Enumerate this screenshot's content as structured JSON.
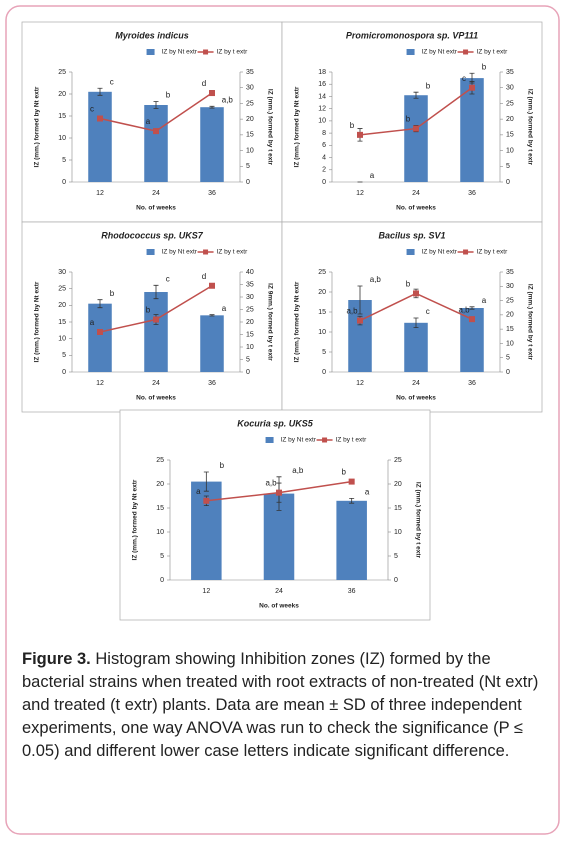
{
  "chart_data": [
    {
      "type": "bar_line",
      "title": "Myroides indicus",
      "x_label": "No. of weeks",
      "y_label": "IZ (mm.) formed by Nt extr",
      "y2_label": "IZ (mm.) formed by t extr",
      "categories": [
        "12",
        "24",
        "36"
      ],
      "ylim": [
        0,
        25
      ],
      "yticks": [
        0,
        5,
        10,
        15,
        20,
        25
      ],
      "y2lim": [
        0,
        35
      ],
      "y2ticks": [
        0,
        5,
        10,
        15,
        20,
        25,
        30,
        35
      ],
      "series": [
        {
          "name": "IZ by Nt extr",
          "color": "#4f81bd",
          "values": [
            20.5,
            17.5,
            17
          ],
          "errors": [
            0.8,
            0.8,
            0.2
          ],
          "sig_letters": [
            "c",
            "b",
            "a,b"
          ]
        },
        {
          "name": "IZ by t extr",
          "color": "#c0504d",
          "axis": "y2",
          "values": [
            20.2,
            16.2,
            28.3
          ],
          "errors": [
            0.5,
            0.5,
            0.8
          ],
          "sig_letters": [
            "c",
            "a",
            "d"
          ]
        }
      ]
    },
    {
      "type": "bar_line",
      "title": "Promicromonospora sp. VP111",
      "x_label": "No. of weeks",
      "y_label": "IZ (mm.) formed by Nt extr",
      "y2_label": "IZ (mm.) formed by t extr",
      "categories": [
        "12",
        "24",
        "36"
      ],
      "ylim": [
        0,
        18
      ],
      "yticks": [
        0,
        2,
        4,
        6,
        8,
        10,
        12,
        14,
        16,
        18
      ],
      "y2lim": [
        0,
        35
      ],
      "y2ticks": [
        0,
        5,
        10,
        15,
        20,
        25,
        30,
        35
      ],
      "series": [
        {
          "name": "IZ by Nt extr",
          "color": "#4f81bd",
          "values": [
            0,
            14.2,
            17
          ],
          "errors": [
            0,
            0.5,
            0.8
          ],
          "sig_letters": [
            "a",
            "b",
            "b"
          ]
        },
        {
          "name": "IZ by t extr",
          "color": "#c0504d",
          "axis": "y2",
          "values": [
            15,
            17,
            30
          ],
          "errors": [
            2,
            1,
            2
          ],
          "sig_letters": [
            "b",
            "b",
            "c"
          ]
        }
      ]
    },
    {
      "type": "bar_line",
      "title": "Rhodococcus sp. UKS7",
      "x_label": "No. of weeks",
      "y_label": "IZ (mm.) formed by Nt extr",
      "y2_label": "IZ 9mm.) formed by t extr",
      "categories": [
        "12",
        "24",
        "36"
      ],
      "ylim": [
        0,
        30
      ],
      "yticks": [
        0,
        5,
        10,
        15,
        20,
        25,
        30
      ],
      "y2lim": [
        0,
        40
      ],
      "y2ticks": [
        0,
        5,
        10,
        15,
        20,
        25,
        30,
        35,
        40
      ],
      "series": [
        {
          "name": "IZ by Nt extr",
          "color": "#4f81bd",
          "values": [
            20.5,
            24,
            17
          ],
          "errors": [
            1.2,
            2,
            0.2
          ],
          "sig_letters": [
            "b",
            "c",
            "a"
          ]
        },
        {
          "name": "IZ by t extr",
          "color": "#c0504d",
          "axis": "y2",
          "values": [
            16,
            21,
            34.5
          ],
          "errors": [
            0.5,
            2,
            0.5
          ],
          "sig_letters": [
            "a",
            "b",
            "d"
          ]
        }
      ]
    },
    {
      "type": "bar_line",
      "title": "Bacilus sp. SV1",
      "x_label": "No. of weeks",
      "y_label": "IZ (mm.) formed by Nt extr",
      "y2_label": "IZ (mm.) formed by t extr",
      "categories": [
        "12",
        "24",
        "36"
      ],
      "ylim": [
        0,
        25
      ],
      "yticks": [
        0,
        5,
        10,
        15,
        20,
        25
      ],
      "y2lim": [
        0,
        35
      ],
      "y2ticks": [
        0,
        5,
        10,
        15,
        20,
        25,
        30,
        35
      ],
      "series": [
        {
          "name": "IZ by Nt extr",
          "color": "#4f81bd",
          "values": [
            18,
            12.3,
            16
          ],
          "errors": [
            3.5,
            1.2,
            0.3
          ],
          "sig_letters": [
            "a,b",
            "c",
            "a"
          ]
        },
        {
          "name": "IZ by t extr",
          "color": "#c0504d",
          "axis": "y2",
          "values": [
            18,
            27.5,
            18.5
          ],
          "errors": [
            1.5,
            1.5,
            0.5
          ],
          "sig_letters": [
            "a,b",
            "b",
            "a,b"
          ]
        }
      ]
    },
    {
      "type": "bar_line",
      "title": "Kocuria sp. UKS5",
      "x_label": "No. of weeks",
      "y_label": "IZ (mm.) formed by Nt extr",
      "y2_label": "IZ (mm.) formed by t extr",
      "categories": [
        "12",
        "24",
        "36"
      ],
      "ylim": [
        0,
        25
      ],
      "yticks": [
        0,
        5,
        10,
        15,
        20,
        25
      ],
      "y2lim": [
        0,
        25
      ],
      "y2ticks": [
        0,
        5,
        10,
        15,
        20,
        25
      ],
      "series": [
        {
          "name": "IZ by Nt extr",
          "color": "#4f81bd",
          "values": [
            20.5,
            18,
            16.5
          ],
          "errors": [
            2,
            3.5,
            0.5
          ],
          "sig_letters": [
            "b",
            "a,b",
            "a"
          ]
        },
        {
          "name": "IZ by t extr",
          "color": "#c0504d",
          "axis": "y2",
          "values": [
            16.5,
            18.2,
            20.5
          ],
          "errors": [
            1,
            2,
            0.3
          ],
          "sig_letters": [
            "a",
            "a,b",
            "b"
          ]
        }
      ]
    }
  ],
  "caption": {
    "label": "Figure 3.",
    "text": "Histogram showing Inhibition zones (IZ) formed by the bacterial strains when treated with root extracts of non-treated (Nt extr) and treated (t extr) plants. Data are mean ± SD of three independent experiments, one way ANOVA was run to check the significance (P ≤ 0.05) and different lower case letters indicate significant difference."
  }
}
